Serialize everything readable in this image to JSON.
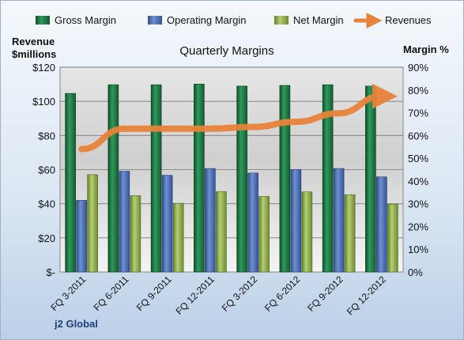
{
  "chart_data": {
    "type": "bar",
    "title": "Quarterly Margins",
    "footer": "j2 Global",
    "left_axis_label_line1": "Revenue",
    "left_axis_label_line2": "$millions",
    "right_axis_label": "Margin %",
    "categories": [
      "FQ 3-2011",
      "FQ 6-2011",
      "FQ 9-2011",
      "FQ 12-2011",
      "FQ 3-2012",
      "FQ 6-2012",
      "FQ 9-2012",
      "FQ 12-2012"
    ],
    "left_axis": {
      "min": 0,
      "max": 120,
      "step": 20,
      "ticks": [
        "$-",
        "$20",
        "$40",
        "$60",
        "$80",
        "$100",
        "$120"
      ]
    },
    "right_axis": {
      "min": 0,
      "max": 90,
      "step": 10,
      "ticks": [
        "0%",
        "10%",
        "20%",
        "30%",
        "40%",
        "50%",
        "60%",
        "70%",
        "80%",
        "90%"
      ]
    },
    "grid": true,
    "legend_position": "top",
    "series": [
      {
        "name": "Gross Margin",
        "axis": "right",
        "kind": "bar",
        "color": "#1e7a45",
        "values": [
          78.5,
          82.3,
          82.3,
          82.6,
          81.7,
          82.0,
          82.3,
          81.7
        ]
      },
      {
        "name": "Operating Margin",
        "axis": "right",
        "kind": "bar",
        "color": "#4a6fb5",
        "values": [
          31.5,
          44.3,
          42.5,
          45.5,
          43.5,
          45.0,
          45.5,
          41.8
        ]
      },
      {
        "name": "Net Margin",
        "axis": "right",
        "kind": "bar",
        "color": "#8fb04a",
        "values": [
          42.8,
          33.6,
          30.2,
          35.4,
          33.2,
          35.2,
          34.0,
          29.8
        ]
      },
      {
        "name": "Revenues",
        "axis": "left",
        "kind": "line",
        "color": "#e8833a",
        "values": [
          72,
          84,
          84,
          84,
          85,
          88,
          93,
          103
        ]
      }
    ]
  }
}
